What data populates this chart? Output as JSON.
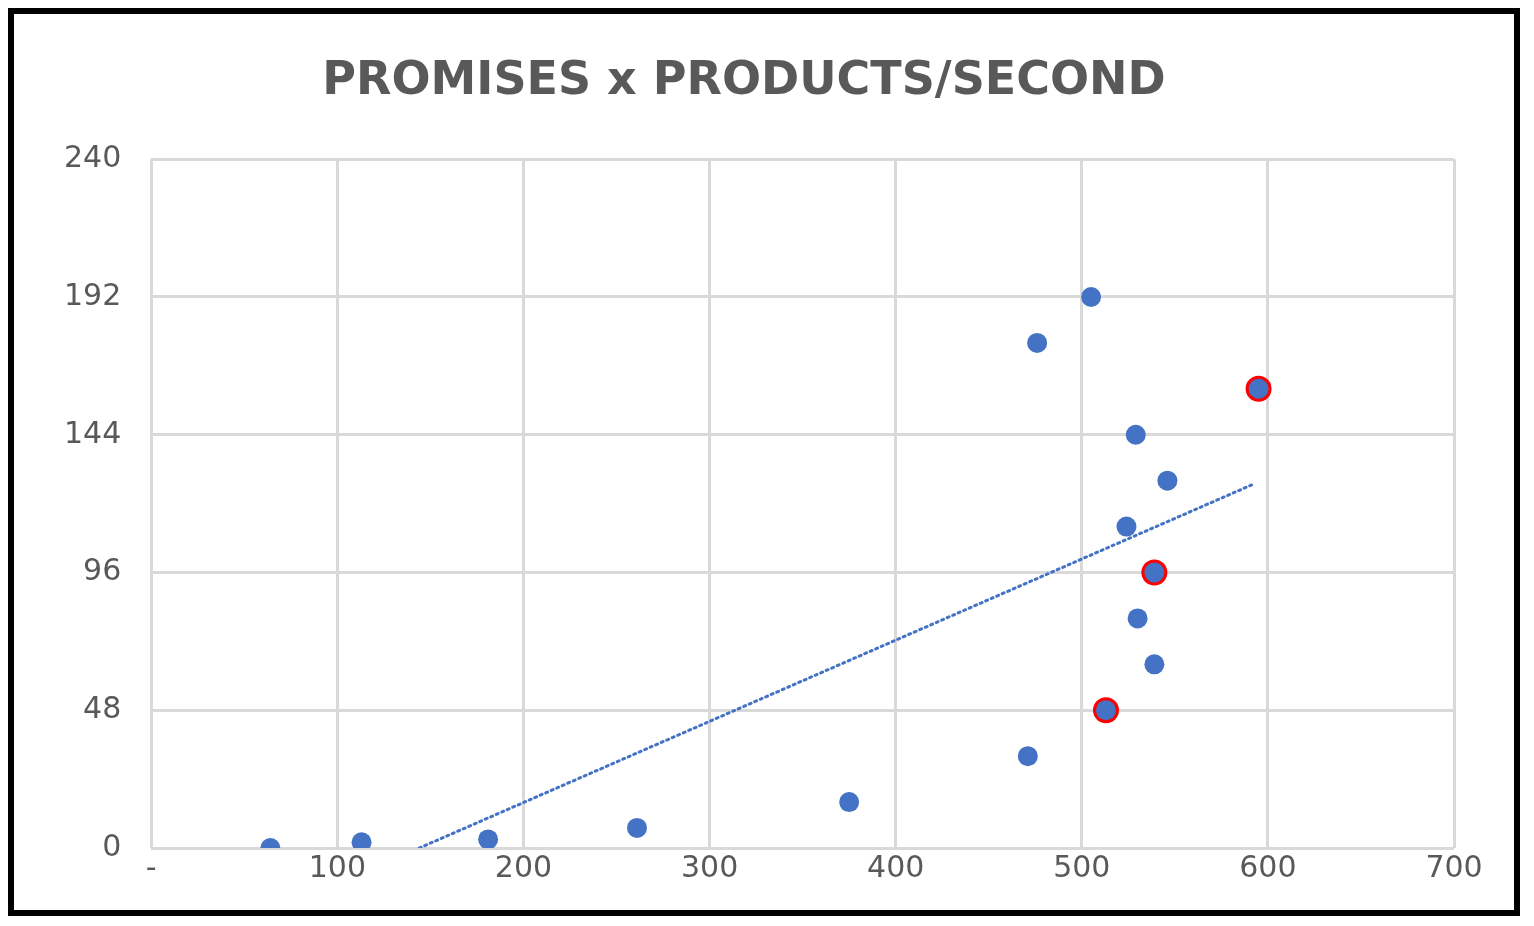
{
  "chart_data": {
    "type": "scatter",
    "title": "PROMISES x PRODUCTS/SECOND",
    "xlim": [
      0,
      700
    ],
    "xticks": [
      {
        "value": 0,
        "label": "-"
      },
      100,
      200,
      300,
      400,
      500,
      600,
      700
    ],
    "ylim": [
      0,
      240
    ],
    "yticks": [
      0,
      48,
      96,
      144,
      192,
      240
    ],
    "grid": true,
    "legend": false,
    "marker": "circle",
    "series": [
      {
        "color": "#4472c4",
        "x": [
          64,
          113,
          181,
          261,
          375,
          471,
          513,
          539,
          530,
          539,
          524,
          546,
          529,
          595,
          476,
          505
        ],
        "values": [
          0,
          2,
          3,
          7,
          16,
          32,
          48,
          64,
          80,
          96,
          112,
          128,
          144,
          160,
          176,
          192
        ]
      },
      {
        "color": "#ff0000",
        "x": [
          513,
          539,
          595
        ],
        "values": [
          48,
          96,
          160
        ]
      },
      {
        "type": "line",
        "color": "#4472c4",
        "line_style": "dotted",
        "marker": "none",
        "x": [
          144,
          593
        ],
        "values": [
          0,
          127
        ]
      }
    ]
  }
}
